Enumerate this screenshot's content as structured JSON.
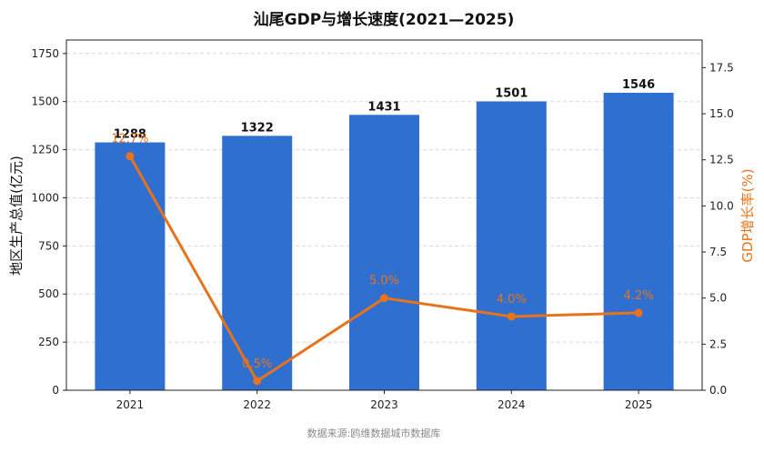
{
  "chart_data": {
    "type": "bar",
    "title": "汕尾GDP与增长速度(2021—2025)",
    "categories": [
      "2021",
      "2022",
      "2023",
      "2024",
      "2025"
    ],
    "ylabel": "地区生产总值(亿元)",
    "y2label": "GDP增长率(%)",
    "ylim": [
      0,
      1820
    ],
    "y2lim": [
      0,
      19
    ],
    "yticks": [
      "0",
      "250",
      "500",
      "750",
      "1000",
      "1250",
      "1500",
      "1750"
    ],
    "y2ticks": [
      "0.0",
      "2.5",
      "5.0",
      "7.5",
      "10.0",
      "12.5",
      "15.0",
      "17.5"
    ],
    "grid": true,
    "series": [
      {
        "type": "bar",
        "values": [
          1288,
          1322,
          1431,
          1501,
          1546
        ],
        "labels": [
          "1288",
          "1322",
          "1431",
          "1501",
          "1546"
        ],
        "color": "#2f6fd0"
      },
      {
        "type": "line",
        "axis": "right",
        "values": [
          12.7,
          0.5,
          5.0,
          4.0,
          4.2
        ],
        "labels": [
          "12.7%",
          "0.5%",
          "5.0%",
          "4.0%",
          "4.2%"
        ],
        "color": "#e8731a"
      }
    ],
    "source": "数据来源:鸥维数据城市数据库"
  }
}
